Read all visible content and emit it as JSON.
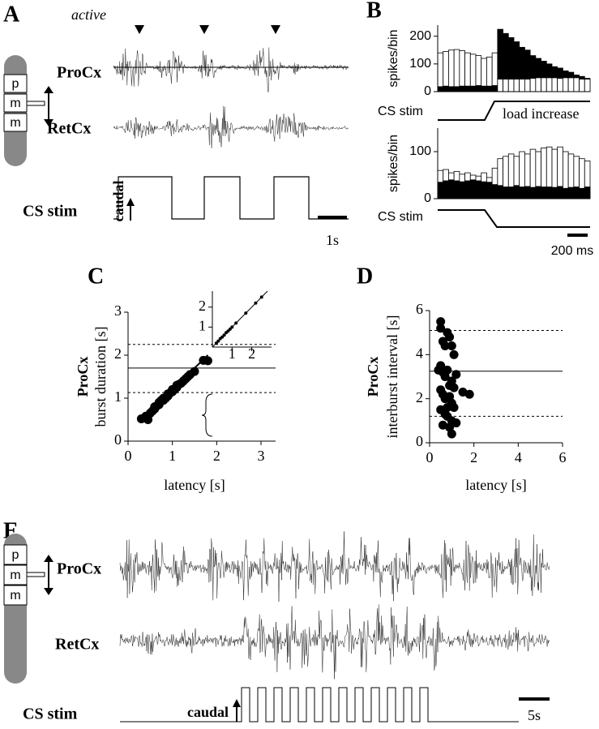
{
  "panels": {
    "A": {
      "label": "A",
      "title": "active",
      "traces": [
        "ProCx",
        "RetCx",
        "CS stim"
      ],
      "arrow_label": "caudal",
      "scale": "1s",
      "segments": [
        "p",
        "m",
        "m"
      ]
    },
    "B": {
      "label": "B",
      "stim_label": [
        "CS stim",
        "CS stim"
      ],
      "annotation": "load increase",
      "scale": "200 ms"
    },
    "C": {
      "label": "C"
    },
    "D": {
      "label": "D"
    },
    "E": {
      "label": "E",
      "traces": [
        "ProCx",
        "RetCx",
        "CS stim"
      ],
      "arrow_label": "caudal",
      "scale": "5s",
      "segments": [
        "p",
        "m",
        "m"
      ]
    }
  },
  "chart_data": [
    {
      "type": "bar",
      "ylabel": "spikes/bin",
      "categories": [
        null,
        null,
        null,
        null,
        null,
        null,
        null,
        null,
        null,
        null,
        null,
        null,
        null,
        null,
        null,
        null,
        null,
        null,
        null,
        null,
        null,
        null,
        null,
        null,
        null,
        null,
        null,
        null
      ],
      "series": [
        {
          "color": "#ffffff",
          "values": [
            140,
            145,
            150,
            152,
            148,
            140,
            135,
            130,
            120,
            125,
            140,
            45,
            45,
            45,
            45,
            45,
            45,
            48,
            50,
            50,
            50,
            50,
            48,
            50,
            50,
            50,
            45,
            45
          ]
        },
        {
          "color": "#000000",
          "values": [
            18,
            20,
            18,
            18,
            20,
            20,
            20,
            22,
            20,
            20,
            22,
            225,
            210,
            195,
            180,
            160,
            150,
            130,
            120,
            110,
            100,
            90,
            85,
            75,
            70,
            60,
            55,
            48
          ]
        }
      ],
      "ylim": [
        0,
        240
      ],
      "yticks": [
        0,
        100,
        200
      ]
    },
    {
      "type": "bar",
      "ylabel": "spikes/bin",
      "categories": [
        null,
        null,
        null,
        null,
        null,
        null,
        null,
        null,
        null,
        null,
        null,
        null,
        null,
        null,
        null,
        null,
        null,
        null,
        null,
        null,
        null,
        null,
        null,
        null,
        null,
        null,
        null,
        null
      ],
      "series": [
        {
          "color": "#ffffff",
          "values": [
            60,
            62,
            55,
            58,
            52,
            55,
            50,
            48,
            55,
            45,
            65,
            85,
            90,
            95,
            90,
            100,
            95,
            105,
            100,
            108,
            110,
            105,
            110,
            100,
            95,
            90,
            85,
            80
          ]
        },
        {
          "color": "#000000",
          "values": [
            35,
            38,
            40,
            38,
            36,
            38,
            40,
            38,
            36,
            35,
            30,
            28,
            25,
            25,
            28,
            25,
            26,
            24,
            26,
            25,
            25,
            24,
            26,
            22,
            24,
            25,
            22,
            25
          ]
        }
      ],
      "ylim": [
        0,
        150
      ],
      "yticks": [
        0,
        100
      ]
    },
    {
      "type": "scatter",
      "ylabel": [
        "ProCx",
        "burst duration [s]"
      ],
      "xlabel": "latency [s]",
      "color": "#000000",
      "x": [
        0.3,
        0.4,
        0.45,
        0.5,
        0.55,
        0.6,
        0.6,
        0.65,
        0.7,
        0.7,
        0.75,
        0.8,
        0.8,
        0.85,
        0.9,
        0.9,
        0.95,
        1.0,
        1.0,
        1.05,
        1.1,
        1.1,
        1.15,
        1.2,
        1.25,
        1.3,
        1.35,
        1.4,
        1.5,
        1.7,
        1.8
      ],
      "y": [
        0.52,
        0.58,
        0.5,
        0.65,
        0.7,
        0.75,
        0.8,
        0.82,
        0.85,
        0.9,
        0.95,
        0.95,
        1.0,
        1.0,
        1.05,
        1.1,
        1.12,
        1.15,
        1.2,
        1.2,
        1.25,
        1.3,
        1.32,
        1.35,
        1.4,
        1.45,
        1.5,
        1.55,
        1.62,
        1.88,
        1.87
      ],
      "xlim": [
        0,
        3
      ],
      "ylim": [
        0,
        3
      ],
      "xticks": [
        0,
        1,
        2,
        3
      ],
      "yticks": [
        0,
        1,
        2,
        3
      ],
      "fit": {
        "x": [
          0.3,
          1.8
        ],
        "y": [
          0.5,
          2.0
        ]
      },
      "reference_lines": [
        1.13,
        1.7,
        2.25
      ],
      "reference_styles": [
        "dashed",
        "solid",
        "dashed"
      ]
    },
    {
      "type": "scatter",
      "color": "#000000",
      "x": [
        0.2,
        0.3,
        0.4,
        0.5,
        0.6,
        0.7,
        0.8,
        0.9,
        1.0,
        1.2,
        1.7,
        2.2,
        2.5
      ],
      "y": [
        0.2,
        0.3,
        0.42,
        0.5,
        0.6,
        0.72,
        0.8,
        0.9,
        1.0,
        1.2,
        1.7,
        2.2,
        2.5
      ],
      "xlim": [
        0,
        2.8
      ],
      "ylim": [
        0,
        2.8
      ],
      "xticks": [
        1,
        2
      ],
      "yticks": [
        1,
        2
      ],
      "fit": {
        "x": [
          0,
          2.8
        ],
        "y": [
          0,
          2.8
        ]
      }
    },
    {
      "type": "scatter",
      "ylabel": [
        "ProCx",
        "interburst interval [s]"
      ],
      "xlabel": "latency [s]",
      "color": "#000000",
      "x": [
        0.5,
        0.5,
        0.6,
        0.7,
        0.8,
        0.9,
        1.0,
        1.1,
        0.4,
        0.5,
        0.6,
        0.7,
        0.8,
        0.9,
        1.0,
        1.1,
        1.2,
        0.5,
        0.6,
        0.7,
        0.9,
        1.0,
        1.1,
        0.5,
        0.7,
        0.8,
        1.0,
        1.2,
        1.5,
        1.8,
        0.9,
        1.0,
        0.6,
        0.8
      ],
      "y": [
        5.5,
        5.2,
        4.6,
        4.4,
        5.0,
        4.8,
        4.4,
        4.0,
        3.3,
        3.5,
        3.2,
        3.0,
        3.3,
        2.6,
        2.8,
        2.5,
        3.1,
        2.4,
        2.2,
        2.0,
        2.1,
        1.8,
        1.6,
        1.5,
        1.3,
        1.2,
        1.0,
        0.9,
        2.3,
        2.2,
        0.7,
        0.4,
        0.8,
        1.6
      ],
      "xlim": [
        0,
        6
      ],
      "ylim": [
        0,
        6
      ],
      "xticks": [
        0,
        2,
        4,
        6
      ],
      "yticks": [
        0,
        2,
        4,
        6
      ],
      "reference_lines": [
        1.2,
        3.25,
        5.1
      ],
      "reference_styles": [
        "dashed",
        "solid",
        "dashed"
      ]
    }
  ]
}
